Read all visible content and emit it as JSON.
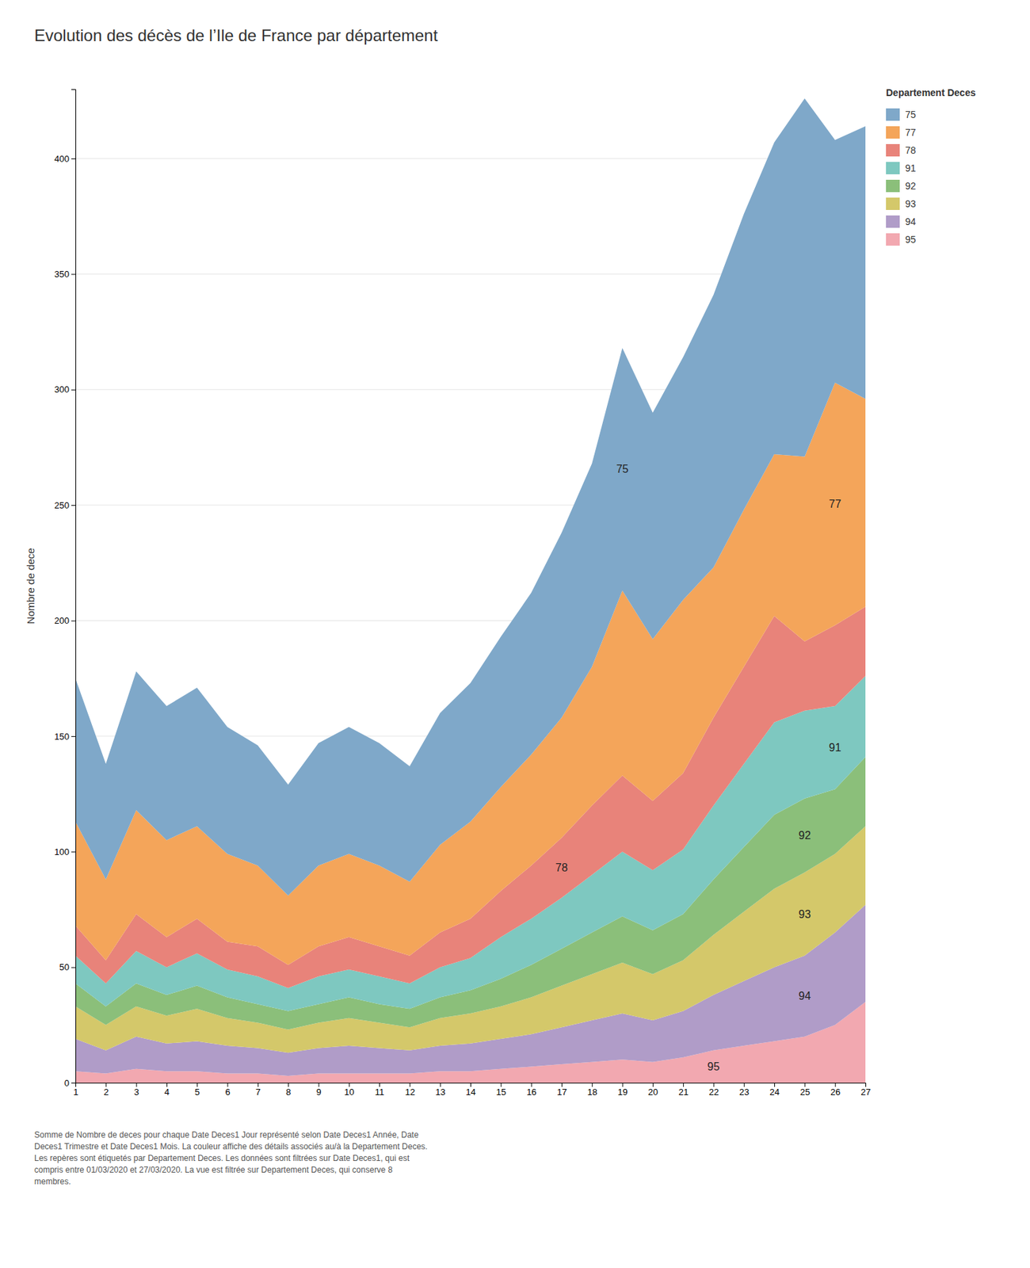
{
  "chart_data": {
    "type": "area",
    "stacked": true,
    "title": "Evolution des décès de l’Ile de France par département",
    "ylabel": "Nombre de dece",
    "legend_title": "Departement Deces",
    "legend": "right",
    "grid": true,
    "footnote": "Somme de Nombre de deces pour chaque Date Deces1 Jour représenté selon Date Deces1 Année, Date\nDeces1 Trimestre et Date Deces1 Mois.  La couleur affiche des détails associés au/à la Departement Deces.\nLes repères sont étiquetés par Departement Deces. Les données sont filtrées sur Date Deces1, qui est\ncompris entre 01/03/2020 et 27/03/2020. La vue est filtrée sur Departement Deces, qui conserve 8\nmembres.",
    "x": [
      1,
      2,
      3,
      4,
      5,
      6,
      7,
      8,
      9,
      10,
      11,
      12,
      13,
      14,
      15,
      16,
      17,
      18,
      19,
      20,
      21,
      22,
      23,
      24,
      25,
      26,
      27
    ],
    "xlim": [
      1,
      27
    ],
    "xticks": [
      1,
      2,
      3,
      4,
      5,
      6,
      7,
      8,
      9,
      10,
      11,
      12,
      13,
      14,
      15,
      16,
      17,
      18,
      19,
      20,
      21,
      22,
      23,
      24,
      25,
      26,
      27
    ],
    "ylim": [
      0,
      430
    ],
    "yticks": [
      0,
      50,
      100,
      150,
      200,
      250,
      300,
      350,
      400
    ],
    "series": [
      {
        "name": "95",
        "color": "#f2a8b0",
        "values": [
          5,
          4,
          6,
          5,
          5,
          4,
          4,
          3,
          4,
          4,
          4,
          4,
          5,
          5,
          6,
          7,
          8,
          9,
          10,
          9,
          11,
          14,
          16,
          18,
          20,
          25,
          35
        ]
      },
      {
        "name": "94",
        "color": "#b09cc8",
        "values": [
          14,
          10,
          14,
          12,
          13,
          12,
          11,
          10,
          11,
          12,
          11,
          10,
          11,
          12,
          13,
          14,
          16,
          18,
          20,
          18,
          20,
          24,
          28,
          32,
          35,
          40,
          42
        ]
      },
      {
        "name": "93",
        "color": "#d4c86a",
        "values": [
          14,
          11,
          13,
          12,
          14,
          12,
          11,
          10,
          11,
          12,
          11,
          10,
          12,
          13,
          14,
          16,
          18,
          20,
          22,
          20,
          22,
          26,
          30,
          34,
          36,
          34,
          34
        ]
      },
      {
        "name": "92",
        "color": "#8bbf7a",
        "values": [
          10,
          8,
          10,
          9,
          10,
          9,
          8,
          8,
          8,
          9,
          8,
          8,
          9,
          10,
          12,
          14,
          16,
          18,
          20,
          19,
          20,
          24,
          28,
          32,
          32,
          28,
          30
        ]
      },
      {
        "name": "91",
        "color": "#7ec8c0",
        "values": [
          12,
          10,
          14,
          12,
          14,
          12,
          12,
          10,
          12,
          12,
          12,
          11,
          13,
          14,
          18,
          20,
          22,
          25,
          28,
          26,
          28,
          32,
          36,
          40,
          38,
          36,
          35
        ]
      },
      {
        "name": "78",
        "color": "#e8837a",
        "values": [
          13,
          10,
          16,
          13,
          15,
          12,
          13,
          10,
          13,
          14,
          13,
          12,
          15,
          17,
          20,
          23,
          26,
          30,
          33,
          30,
          33,
          38,
          42,
          46,
          30,
          35,
          30
        ]
      },
      {
        "name": "77",
        "color": "#f4a55a",
        "values": [
          45,
          35,
          45,
          42,
          40,
          38,
          35,
          30,
          35,
          36,
          35,
          32,
          38,
          42,
          45,
          48,
          52,
          60,
          80,
          70,
          75,
          65,
          68,
          70,
          80,
          105,
          90
        ]
      },
      {
        "name": "75",
        "color": "#7fa8c9",
        "values": [
          62,
          50,
          60,
          58,
          60,
          55,
          52,
          48,
          53,
          55,
          53,
          50,
          57,
          60,
          65,
          70,
          80,
          88,
          105,
          98,
          105,
          118,
          128,
          135,
          155,
          105,
          118
        ]
      }
    ],
    "annotations": [
      {
        "text": "75",
        "series": "75",
        "x": 19
      },
      {
        "text": "77",
        "series": "77",
        "x": 26
      },
      {
        "text": "78",
        "series": "78",
        "x": 17
      },
      {
        "text": "91",
        "series": "91",
        "x": 26
      },
      {
        "text": "92",
        "series": "92",
        "x": 25
      },
      {
        "text": "93",
        "series": "93",
        "x": 25
      },
      {
        "text": "94",
        "series": "94",
        "x": 25
      },
      {
        "text": "95",
        "series": "95",
        "x": 22
      }
    ]
  }
}
